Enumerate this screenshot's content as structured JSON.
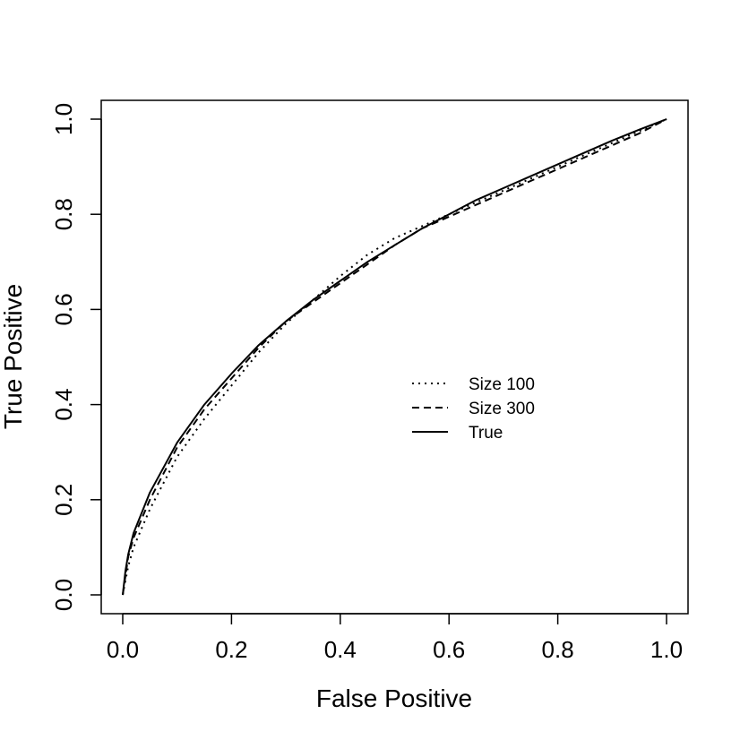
{
  "chart_data": {
    "type": "line",
    "title": "",
    "xlabel": "False Positive",
    "ylabel": "True Positive",
    "xlim": [
      0.0,
      1.0
    ],
    "ylim": [
      0.0,
      1.0
    ],
    "xticks": [
      "0.0",
      "0.2",
      "0.4",
      "0.6",
      "0.8",
      "1.0"
    ],
    "yticks": [
      "0.0",
      "0.2",
      "0.4",
      "0.6",
      "0.8",
      "1.0"
    ],
    "grid": false,
    "legend_position": "center-right",
    "series": [
      {
        "name": "Size 100",
        "line_style": "dotted",
        "x": [
          0.0,
          0.01,
          0.02,
          0.05,
          0.1,
          0.15,
          0.2,
          0.25,
          0.3,
          0.35,
          0.4,
          0.45,
          0.5,
          0.55,
          0.6,
          0.65,
          0.7,
          0.75,
          0.8,
          0.85,
          0.9,
          0.95,
          1.0
        ],
        "y": [
          0.0,
          0.06,
          0.1,
          0.18,
          0.29,
          0.37,
          0.44,
          0.51,
          0.57,
          0.62,
          0.67,
          0.715,
          0.75,
          0.775,
          0.8,
          0.825,
          0.85,
          0.875,
          0.9,
          0.925,
          0.95,
          0.975,
          1.0
        ]
      },
      {
        "name": "Size 300",
        "line_style": "dashed",
        "x": [
          0.0,
          0.01,
          0.02,
          0.05,
          0.1,
          0.15,
          0.2,
          0.25,
          0.3,
          0.35,
          0.4,
          0.45,
          0.5,
          0.55,
          0.6,
          0.65,
          0.7,
          0.75,
          0.8,
          0.85,
          0.9,
          0.95,
          1.0
        ],
        "y": [
          0.0,
          0.08,
          0.12,
          0.2,
          0.31,
          0.39,
          0.455,
          0.52,
          0.575,
          0.615,
          0.655,
          0.695,
          0.735,
          0.77,
          0.795,
          0.82,
          0.845,
          0.87,
          0.895,
          0.92,
          0.945,
          0.97,
          1.0
        ]
      },
      {
        "name": "True",
        "line_style": "solid",
        "x": [
          0.0,
          0.005,
          0.01,
          0.02,
          0.05,
          0.1,
          0.15,
          0.2,
          0.25,
          0.3,
          0.35,
          0.4,
          0.45,
          0.5,
          0.55,
          0.6,
          0.65,
          0.7,
          0.75,
          0.8,
          0.85,
          0.9,
          0.95,
          1.0
        ],
        "y": [
          0.0,
          0.05,
          0.085,
          0.13,
          0.215,
          0.32,
          0.4,
          0.465,
          0.525,
          0.575,
          0.62,
          0.66,
          0.7,
          0.735,
          0.77,
          0.8,
          0.83,
          0.855,
          0.88,
          0.905,
          0.93,
          0.955,
          0.978,
          1.0
        ]
      }
    ]
  }
}
